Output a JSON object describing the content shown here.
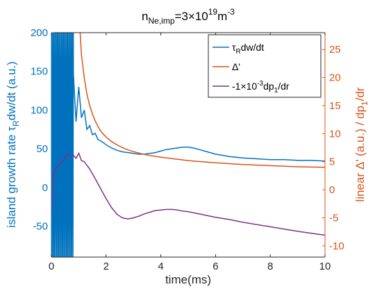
{
  "chart_data": {
    "type": "line",
    "title": {
      "base": "n",
      "sub": "Ne,imp",
      "mid": "=3×10",
      "sup": "19",
      "unit": "m",
      "unitsup": "-3"
    },
    "xlabel": "time(ms)",
    "xlim": [
      0,
      10
    ],
    "xticks": [
      0,
      2,
      4,
      6,
      8,
      10
    ],
    "ylabel_left": {
      "before": "island growth rate τ",
      "sub": "R",
      "after": "dw/dt (a.u.)"
    },
    "ylim_left": [
      -90,
      200
    ],
    "yticks_left": [
      -50,
      0,
      50,
      100,
      150,
      200
    ],
    "ylabel_right": {
      "before": "linear Δ' (a.u.) / dp",
      "sub": "1",
      "after": "/dr"
    },
    "ylim_right": [
      -12,
      28
    ],
    "yticks_right": [
      -10,
      -5,
      0,
      5,
      10,
      15,
      20,
      25
    ],
    "colors": {
      "left_axis": "#0072BD",
      "right_axis": "#D95319",
      "series1": "#0072BD",
      "series2": "#D95319",
      "series3": "#7E2F8E"
    },
    "legend": {
      "placement": "top-right",
      "entries": [
        {
          "parts": [
            [
              "τ",
              ""
            ],
            [
              "R",
              "sub"
            ],
            [
              "dw/dt",
              ""
            ]
          ],
          "series": 0
        },
        {
          "parts": [
            [
              "Δ'",
              ""
            ]
          ],
          "series": 1
        },
        {
          "parts": [
            [
              "-1×10",
              ""
            ],
            [
              "-3",
              "sup"
            ],
            [
              "dp",
              ""
            ],
            [
              "1",
              "sub"
            ],
            [
              "/dr",
              ""
            ]
          ],
          "series": 2
        }
      ]
    },
    "series": [
      {
        "axis": "left",
        "x": [
          0.8,
          0.9,
          1.0,
          1.1,
          1.2,
          1.3,
          1.4,
          1.5,
          1.6,
          1.7,
          1.8,
          1.9,
          2.0,
          2.2,
          2.4,
          2.6,
          2.8,
          3.0,
          3.2,
          3.4,
          3.6,
          3.8,
          4.0,
          4.2,
          4.4,
          4.6,
          4.8,
          5.0,
          5.2,
          5.4,
          5.6,
          5.8,
          6.0,
          6.5,
          7.0,
          7.5,
          8.0,
          8.5,
          9.0,
          9.5,
          10.0
        ],
        "y": [
          150,
          85,
          130,
          90,
          100,
          75,
          80,
          68,
          70,
          62,
          60,
          58,
          55,
          51,
          48,
          46,
          45,
          44,
          43,
          43,
          44,
          45,
          47,
          49,
          50,
          51,
          52,
          52,
          51,
          49,
          47,
          45,
          43,
          40,
          38,
          37,
          36,
          36,
          35,
          35,
          34
        ]
      },
      {
        "axis": "right",
        "x": [
          1.05,
          1.1,
          1.2,
          1.3,
          1.4,
          1.5,
          1.6,
          1.7,
          1.8,
          1.9,
          2.0,
          2.2,
          2.4,
          2.6,
          2.8,
          3.0,
          3.3,
          3.6,
          4.0,
          4.5,
          5.0,
          5.5,
          6.0,
          7.0,
          8.0,
          9.0,
          10.0
        ],
        "y": [
          28,
          24,
          20,
          17,
          15,
          13.5,
          12.3,
          11.3,
          10.5,
          9.9,
          9.4,
          8.6,
          8.0,
          7.5,
          7.1,
          6.8,
          6.4,
          6.1,
          5.8,
          5.5,
          5.2,
          5.0,
          4.8,
          4.5,
          4.3,
          4.1,
          4.0
        ]
      },
      {
        "axis": "right",
        "x": [
          0.0,
          0.05,
          0.1,
          0.2,
          0.3,
          0.4,
          0.5,
          0.6,
          0.7,
          0.8,
          0.9,
          1.0,
          1.1,
          1.2,
          1.4,
          1.6,
          1.8,
          2.0,
          2.2,
          2.4,
          2.6,
          2.8,
          3.0,
          3.2,
          3.4,
          3.6,
          3.8,
          4.0,
          4.2,
          4.4,
          4.6,
          4.8,
          5.0,
          5.5,
          6.0,
          6.5,
          7.0,
          8.0,
          9.0,
          10.0
        ],
        "y": [
          -5,
          1,
          3,
          4,
          4.5,
          5,
          5.8,
          6.3,
          6.0,
          6.2,
          5.6,
          6.5,
          5.2,
          5.0,
          3.7,
          2.0,
          0.2,
          -1.6,
          -3.2,
          -4.4,
          -5.0,
          -5.2,
          -5.0,
          -4.7,
          -4.3,
          -4.0,
          -3.7,
          -3.6,
          -3.5,
          -3.5,
          -3.6,
          -3.8,
          -3.9,
          -4.4,
          -4.9,
          -5.3,
          -5.8,
          -6.6,
          -7.4,
          -8.1
        ]
      }
    ]
  }
}
